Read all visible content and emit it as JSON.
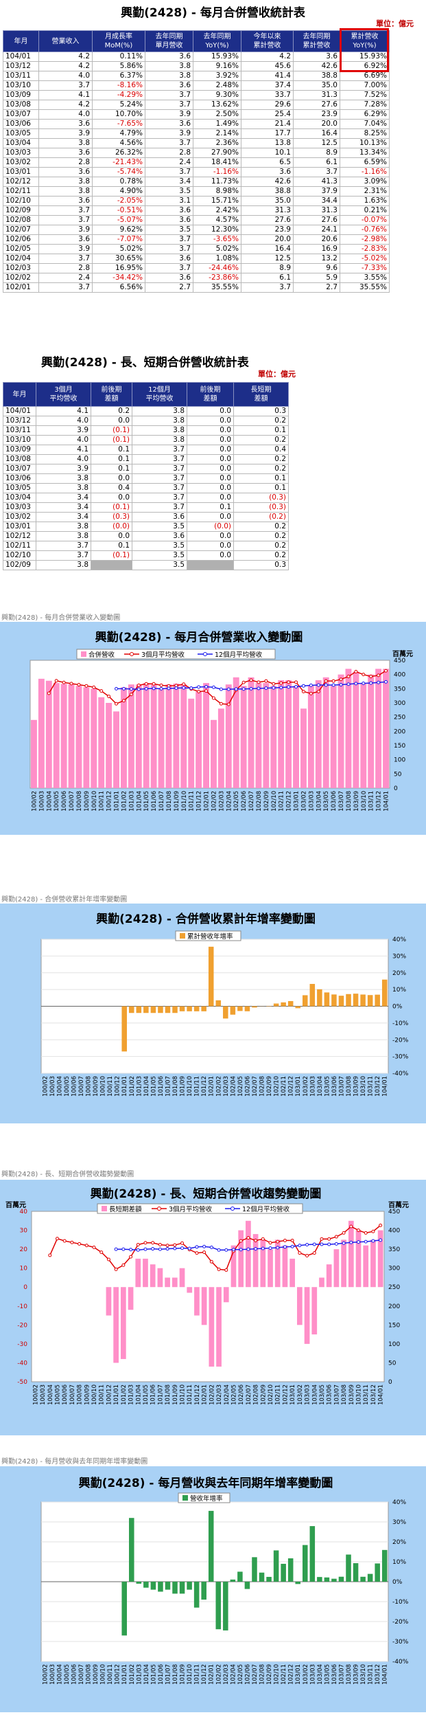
{
  "t1": {
    "title": "興勤(2428)  - 每月合併營收統計表",
    "unit": "單位：億元",
    "headers": [
      "年月",
      "營業收入",
      "月成長率\nMoM(%)",
      "去年同期\n單月營收",
      "去年同期\nYoY(%)",
      "今年以來\n累計營收",
      "去年同期\n累計營收",
      "累計營收\nYoY(%)"
    ],
    "rows": [
      [
        "104/01",
        "4.2",
        "0.11%",
        "3.6",
        "15.93%",
        "4.2",
        "3.6",
        "15.93%"
      ],
      [
        "103/12",
        "4.2",
        "5.86%",
        "3.8",
        "9.16%",
        "45.6",
        "42.6",
        "6.92%"
      ],
      [
        "103/11",
        "4.0",
        "6.37%",
        "3.8",
        "3.92%",
        "41.4",
        "38.8",
        "6.69%"
      ],
      [
        "103/10",
        "3.7",
        "-8.16%",
        "3.6",
        "2.48%",
        "37.4",
        "35.0",
        "7.00%"
      ],
      [
        "103/09",
        "4.1",
        "-4.29%",
        "3.7",
        "9.30%",
        "33.7",
        "31.3",
        "7.52%"
      ],
      [
        "103/08",
        "4.2",
        "5.24%",
        "3.7",
        "13.62%",
        "29.6",
        "27.6",
        "7.28%"
      ],
      [
        "103/07",
        "4.0",
        "10.70%",
        "3.9",
        "2.50%",
        "25.4",
        "23.9",
        "6.29%"
      ],
      [
        "103/06",
        "3.6",
        "-7.65%",
        "3.6",
        "1.49%",
        "21.4",
        "20.0",
        "7.04%"
      ],
      [
        "103/05",
        "3.9",
        "4.79%",
        "3.9",
        "2.14%",
        "17.7",
        "16.4",
        "8.25%"
      ],
      [
        "103/04",
        "3.8",
        "4.56%",
        "3.7",
        "2.36%",
        "13.8",
        "12.5",
        "10.13%"
      ],
      [
        "103/03",
        "3.6",
        "26.32%",
        "2.8",
        "27.90%",
        "10.1",
        "8.9",
        "13.34%"
      ],
      [
        "103/02",
        "2.8",
        "-21.43%",
        "2.4",
        "18.41%",
        "6.5",
        "6.1",
        "6.59%"
      ],
      [
        "103/01",
        "3.6",
        "-5.74%",
        "3.7",
        "-1.16%",
        "3.6",
        "3.7",
        "-1.16%"
      ],
      [
        "102/12",
        "3.8",
        "0.78%",
        "3.4",
        "11.73%",
        "42.6",
        "41.3",
        "3.09%"
      ],
      [
        "102/11",
        "3.8",
        "4.90%",
        "3.5",
        "8.98%",
        "38.8",
        "37.9",
        "2.31%"
      ],
      [
        "102/10",
        "3.6",
        "-2.05%",
        "3.1",
        "15.71%",
        "35.0",
        "34.4",
        "1.63%"
      ],
      [
        "102/09",
        "3.7",
        "-0.51%",
        "3.6",
        "2.42%",
        "31.3",
        "31.3",
        "0.21%"
      ],
      [
        "102/08",
        "3.7",
        "-5.07%",
        "3.6",
        "4.57%",
        "27.6",
        "27.6",
        "-0.07%"
      ],
      [
        "102/07",
        "3.9",
        "9.62%",
        "3.5",
        "12.30%",
        "23.9",
        "24.1",
        "-0.76%"
      ],
      [
        "102/06",
        "3.6",
        "-7.07%",
        "3.7",
        "-3.65%",
        "20.0",
        "20.6",
        "-2.98%"
      ],
      [
        "102/05",
        "3.9",
        "5.02%",
        "3.7",
        "5.02%",
        "16.4",
        "16.9",
        "-2.83%"
      ],
      [
        "102/04",
        "3.7",
        "30.65%",
        "3.6",
        "1.08%",
        "12.5",
        "13.2",
        "-5.02%"
      ],
      [
        "102/03",
        "2.8",
        "16.95%",
        "3.7",
        "-24.46%",
        "8.9",
        "9.6",
        "-7.33%"
      ],
      [
        "102/02",
        "2.4",
        "-34.42%",
        "3.6",
        "-23.86%",
        "6.1",
        "5.9",
        "3.55%"
      ],
      [
        "102/01",
        "3.7",
        "6.56%",
        "2.7",
        "35.55%",
        "3.7",
        "2.7",
        "35.55%"
      ]
    ]
  },
  "t2": {
    "title": "興勤(2428)  - 長、短期合併營收統計表",
    "unit": "單位：億元",
    "headers": [
      "年月",
      "3個月\n平均營收",
      "前後期\n差額",
      "12個月\n平均營收",
      "前後期\n差額",
      "長短期\n差額"
    ],
    "rows": [
      [
        "104/01",
        "4.1",
        "0.2",
        "3.8",
        "0.0",
        "0.3"
      ],
      [
        "103/12",
        "4.0",
        "0.0",
        "3.8",
        "0.0",
        "0.2"
      ],
      [
        "103/11",
        "3.9",
        "(0.1)",
        "3.8",
        "0.0",
        "0.1"
      ],
      [
        "103/10",
        "4.0",
        "(0.1)",
        "3.8",
        "0.0",
        "0.2"
      ],
      [
        "103/09",
        "4.1",
        "0.1",
        "3.7",
        "0.0",
        "0.4"
      ],
      [
        "103/08",
        "4.0",
        "0.1",
        "3.7",
        "0.0",
        "0.2"
      ],
      [
        "103/07",
        "3.9",
        "0.1",
        "3.7",
        "0.0",
        "0.2"
      ],
      [
        "103/06",
        "3.8",
        "0.0",
        "3.7",
        "0.0",
        "0.1"
      ],
      [
        "103/05",
        "3.8",
        "0.4",
        "3.7",
        "0.0",
        "0.1"
      ],
      [
        "103/04",
        "3.4",
        "0.0",
        "3.7",
        "0.0",
        "(0.3)"
      ],
      [
        "103/03",
        "3.4",
        "(0.1)",
        "3.7",
        "0.1",
        "(0.3)"
      ],
      [
        "103/02",
        "3.4",
        "(0.3)",
        "3.6",
        "0.0",
        "(0.2)"
      ],
      [
        "103/01",
        "3.8",
        "(0.0)",
        "3.5",
        "(0.0)",
        "0.2"
      ],
      [
        "102/12",
        "3.8",
        "0.0",
        "3.6",
        "0.0",
        "0.2"
      ],
      [
        "102/11",
        "3.7",
        "0.1",
        "3.5",
        "0.0",
        "0.2"
      ],
      [
        "102/10",
        "3.7",
        "(0.1)",
        "3.5",
        "0.0",
        "0.2"
      ],
      [
        "102/09",
        "3.8",
        "",
        "3.5",
        "",
        "0.3"
      ]
    ]
  },
  "charts": {
    "c1": {
      "caption": "興勤(2428)  - 每月合併營業收入變動圖",
      "title": "興勤(2428) - 每月合併營業收入變動圖",
      "unit": "百萬元"
    },
    "c2": {
      "caption": "興勤(2428)  - 合併營收累計年增率變動圖",
      "title": "興勤(2428)  - 合併營收累計年增率變動圖"
    },
    "c3": {
      "caption": "興勤(2428)  - 長、短期合併營收趨勢變動圖",
      "title": "興勤(2428)  - 長、短期合併營收趨勢變動圖",
      "unit": "百萬元"
    },
    "c4": {
      "caption": "興勤(2428)  - 每月營收與去年同期年增率變動圖",
      "title": "興勤(2428)  - 每月營收與去年同期年增率變動圖"
    }
  },
  "chart_data": [
    {
      "type": "bar",
      "title": "興勤(2428) - 每月合併營業收入變動圖",
      "ylabel": "百萬元",
      "ylim": [
        0,
        450
      ],
      "yticks": [
        0,
        50,
        100,
        150,
        200,
        250,
        300,
        350,
        400,
        450
      ],
      "categories": [
        "100/02",
        "100/03",
        "100/04",
        "100/05",
        "100/06",
        "100/07",
        "100/08",
        "100/09",
        "100/10",
        "100/11",
        "100/12",
        "101/01",
        "101/02",
        "101/03",
        "101/04",
        "101/05",
        "101/06",
        "101/07",
        "101/08",
        "101/09",
        "101/10",
        "101/11",
        "101/12",
        "102/01",
        "102/02",
        "102/03",
        "102/04",
        "102/05",
        "102/06",
        "102/07",
        "102/08",
        "102/09",
        "102/10",
        "102/11",
        "102/12",
        "103/01",
        "103/02",
        "103/03",
        "103/04",
        "103/05",
        "103/06",
        "103/07",
        "103/08",
        "103/09",
        "103/10",
        "103/11",
        "103/12",
        "104/01"
      ],
      "series": [
        {
          "name": "合併營收",
          "type": "bar",
          "color": "#ff8fc8",
          "values": [
            240,
            385,
            378,
            370,
            367,
            366,
            360,
            355,
            350,
            320,
            300,
            270,
            355,
            365,
            365,
            370,
            365,
            350,
            365,
            368,
            365,
            315,
            340,
            370,
            240,
            280,
            365,
            390,
            360,
            390,
            370,
            370,
            360,
            380,
            380,
            360,
            280,
            360,
            380,
            390,
            360,
            400,
            420,
            410,
            370,
            400,
            420,
            420
          ]
        },
        {
          "name": "3個月平均營收",
          "type": "line",
          "color": "#e00000",
          "values": [
            null,
            null,
            334,
            378,
            372,
            368,
            364,
            360,
            355,
            342,
            323,
            297,
            308,
            330,
            362,
            367,
            367,
            362,
            360,
            361,
            366,
            349,
            340,
            342,
            317,
            297,
            295,
            345,
            372,
            380,
            373,
            377,
            367,
            370,
            373,
            373,
            340,
            333,
            340,
            377,
            377,
            383,
            393,
            410,
            400,
            393,
            397,
            413
          ]
        },
        {
          "name": "12個月平均營收",
          "type": "line",
          "color": "#1a1aee",
          "values": [
            null,
            null,
            null,
            null,
            null,
            null,
            null,
            null,
            null,
            null,
            null,
            350,
            350,
            349,
            348,
            350,
            351,
            350,
            351,
            352,
            353,
            352,
            356,
            357,
            355,
            348,
            348,
            349,
            349,
            350,
            351,
            352,
            353,
            354,
            356,
            357,
            360,
            362,
            363,
            363,
            363,
            364,
            366,
            368,
            369,
            370,
            372,
            374
          ]
        }
      ]
    },
    {
      "type": "bar",
      "title": "興勤(2428)  - 合併營收累計年增率變動圖",
      "ylim": [
        -40,
        40
      ],
      "yticks": [
        -40,
        -30,
        -20,
        -10,
        0,
        10,
        20,
        30,
        40
      ],
      "categories": [
        "100/02",
        "100/03",
        "100/04",
        "100/05",
        "100/06",
        "100/07",
        "100/08",
        "100/09",
        "100/10",
        "100/11",
        "100/12",
        "101/01",
        "101/02",
        "101/03",
        "101/04",
        "101/05",
        "101/06",
        "101/07",
        "101/08",
        "101/09",
        "101/10",
        "101/11",
        "101/12",
        "102/01",
        "102/02",
        "102/03",
        "102/04",
        "102/05",
        "102/06",
        "102/07",
        "102/08",
        "102/09",
        "102/10",
        "102/11",
        "102/12",
        "103/01",
        "103/02",
        "103/03",
        "103/04",
        "103/05",
        "103/06",
        "103/07",
        "103/08",
        "103/09",
        "103/10",
        "103/11",
        "103/12",
        "104/01"
      ],
      "series": [
        {
          "name": "累計營收年增率",
          "color": "#f0a030",
          "values": [
            0,
            0,
            0,
            0,
            0,
            0,
            0,
            0,
            0,
            0,
            0,
            -27,
            -4,
            -4,
            -4,
            -4,
            -4,
            -4,
            -4,
            -3,
            -3,
            -3,
            -3,
            35.55,
            3.55,
            -7.33,
            -5.02,
            -2.83,
            -2.98,
            -0.76,
            -0.07,
            0.21,
            1.63,
            2.31,
            3.09,
            -1.16,
            6.59,
            13.34,
            10.13,
            8.25,
            7.04,
            6.29,
            7.28,
            7.52,
            7.0,
            6.69,
            6.92,
            15.93
          ]
        }
      ]
    },
    {
      "type": "bar",
      "title": "興勤(2428)  - 長、短期合併營收趨勢變動圖",
      "ylabel": "百萬元",
      "ylim_left": [
        -50,
        40
      ],
      "ylim_right": [
        0,
        450
      ],
      "yticks_left": [
        -50,
        -40,
        -30,
        -20,
        -10,
        0,
        10,
        20,
        30,
        40
      ],
      "yticks_right": [
        0,
        50,
        100,
        150,
        200,
        250,
        300,
        350,
        400,
        450
      ],
      "categories": [
        "100/02",
        "100/03",
        "100/04",
        "100/05",
        "100/06",
        "100/07",
        "100/08",
        "100/09",
        "100/10",
        "100/11",
        "100/12",
        "101/01",
        "101/02",
        "101/03",
        "101/04",
        "101/05",
        "101/06",
        "101/07",
        "101/08",
        "101/09",
        "101/10",
        "101/11",
        "101/12",
        "102/01",
        "102/02",
        "102/03",
        "102/04",
        "102/05",
        "102/06",
        "102/07",
        "102/08",
        "102/09",
        "102/10",
        "102/11",
        "102/12",
        "103/01",
        "103/02",
        "103/03",
        "103/04",
        "103/05",
        "103/06",
        "103/07",
        "103/08",
        "103/09",
        "103/10",
        "103/11",
        "103/12",
        "104/01"
      ],
      "series": [
        {
          "name": "長短期差額",
          "type": "bar",
          "axis": "left",
          "color": "#ff8fc8",
          "values": [
            0,
            0,
            0,
            0,
            0,
            0,
            0,
            0,
            0,
            0,
            -15,
            -40,
            -38,
            -12,
            15,
            15,
            12,
            10,
            5,
            5,
            10,
            -3,
            -15,
            -20,
            -42,
            -42,
            -8,
            22,
            30,
            35,
            28,
            25,
            20,
            25,
            22,
            15,
            -20,
            -30,
            -25,
            5,
            12,
            20,
            25,
            35,
            30,
            22,
            25,
            30
          ]
        },
        {
          "name": "3個月平均營收",
          "type": "line",
          "axis": "right",
          "color": "#e00000",
          "values": [
            null,
            null,
            334,
            378,
            372,
            368,
            364,
            360,
            355,
            342,
            323,
            297,
            308,
            330,
            362,
            367,
            367,
            362,
            360,
            361,
            366,
            349,
            340,
            342,
            317,
            297,
            295,
            345,
            372,
            380,
            373,
            377,
            367,
            370,
            373,
            373,
            340,
            333,
            340,
            377,
            377,
            383,
            393,
            410,
            400,
            393,
            397,
            413
          ]
        },
        {
          "name": "12個月平均營收",
          "type": "line",
          "axis": "right",
          "color": "#1a1aee",
          "values": [
            null,
            null,
            null,
            null,
            null,
            null,
            null,
            null,
            null,
            null,
            null,
            350,
            350,
            349,
            348,
            350,
            351,
            350,
            351,
            352,
            353,
            352,
            356,
            357,
            355,
            348,
            348,
            349,
            349,
            350,
            351,
            352,
            353,
            354,
            356,
            357,
            360,
            362,
            363,
            363,
            363,
            364,
            366,
            368,
            369,
            370,
            372,
            374
          ]
        }
      ]
    },
    {
      "type": "bar",
      "title": "興勤(2428)  - 每月營收與去年同期年增率變動圖",
      "ylim": [
        -40,
        40
      ],
      "yticks": [
        -40,
        -30,
        -20,
        -10,
        0,
        10,
        20,
        30,
        40
      ],
      "categories": [
        "100/02",
        "100/03",
        "100/04",
        "100/05",
        "100/06",
        "100/07",
        "100/08",
        "100/09",
        "100/10",
        "100/11",
        "100/12",
        "101/01",
        "101/02",
        "101/03",
        "101/04",
        "101/05",
        "101/06",
        "101/07",
        "101/08",
        "101/09",
        "101/10",
        "101/11",
        "101/12",
        "102/01",
        "102/02",
        "102/03",
        "102/04",
        "102/05",
        "102/06",
        "102/07",
        "102/08",
        "102/09",
        "102/10",
        "102/11",
        "102/12",
        "103/01",
        "103/02",
        "103/03",
        "103/04",
        "103/05",
        "103/06",
        "103/07",
        "103/08",
        "103/09",
        "103/10",
        "103/11",
        "103/12",
        "104/01"
      ],
      "series": [
        {
          "name": "營收年增率",
          "color": "#2f9e4f",
          "values": [
            0,
            0,
            0,
            0,
            0,
            0,
            0,
            0,
            0,
            0,
            0,
            -27,
            32,
            -1,
            -3,
            -4,
            -5,
            -4,
            -6,
            -6,
            -4,
            -13,
            -9,
            35.55,
            -23.86,
            -24.46,
            1.08,
            5.02,
            -3.65,
            12.3,
            4.57,
            2.42,
            15.71,
            8.98,
            11.73,
            -1.16,
            18.41,
            27.9,
            2.36,
            2.14,
            1.49,
            2.5,
            13.62,
            9.3,
            2.48,
            3.92,
            9.16,
            15.93
          ]
        }
      ]
    }
  ]
}
